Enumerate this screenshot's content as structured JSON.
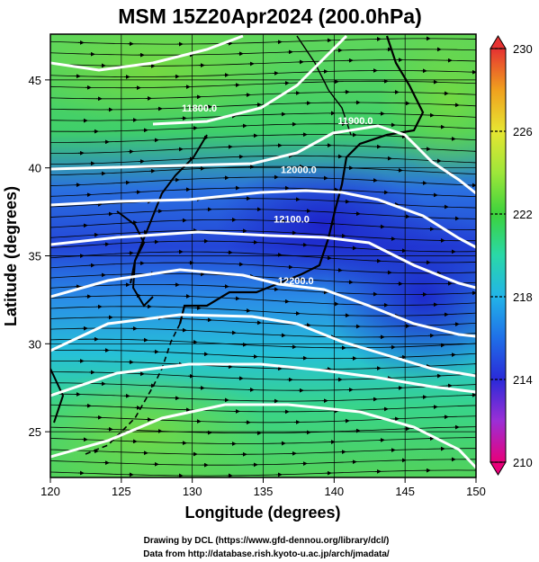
{
  "chart_data": {
    "type": "heatmap",
    "title": "MSM 15Z20Apr2024 (200.0hPa)",
    "xlabel": "Longitude (degrees)",
    "ylabel": "Latitude  (degrees)",
    "xlim": [
      120,
      150
    ],
    "ylim": [
      22.4,
      47.6
    ],
    "x_ticks": [
      "120",
      "125",
      "130",
      "135",
      "140",
      "145",
      "150"
    ],
    "y_ticks": [
      "25",
      "30",
      "35",
      "40",
      "45"
    ],
    "x_tick_values": [
      120,
      125,
      130,
      135,
      140,
      145,
      150
    ],
    "y_tick_values": [
      25,
      30,
      35,
      40,
      45
    ],
    "grid": true,
    "colorbar": {
      "range": [
        210,
        230
      ],
      "ticks": [
        "230",
        "226",
        "222",
        "218",
        "214",
        "210"
      ],
      "tick_values": [
        230,
        226,
        222,
        218,
        214,
        210
      ],
      "colors": [
        "#e8007a",
        "#9b2fd6",
        "#2a2ad8",
        "#1f6fe8",
        "#22b4e8",
        "#2ad8a8",
        "#3cd23c",
        "#9ee63a",
        "#e6e632",
        "#f0a01e",
        "#ee5a1e",
        "#e63232"
      ]
    },
    "contours": [
      {
        "label": "11800.0",
        "label_lon": 130.5,
        "label_lat": 43.2
      },
      {
        "label": "11900.0",
        "label_lon": 141.5,
        "label_lat": 42.5
      },
      {
        "label": "12000.0",
        "label_lon": 137.5,
        "label_lat": 39.7
      },
      {
        "label": "12100.0",
        "label_lon": 137.0,
        "label_lat": 36.9
      },
      {
        "label": "12200.0",
        "label_lon": 137.3,
        "label_lat": 33.4
      }
    ],
    "series_note": "streamlines of 200hPa wind, flow west to east"
  },
  "credits": {
    "line1": "Drawing by DCL (https://www.gfd-dennou.org/library/dcl/)",
    "line2": "Data from http://database.rish.kyoto-u.ac.jp/arch/jmadata/"
  }
}
